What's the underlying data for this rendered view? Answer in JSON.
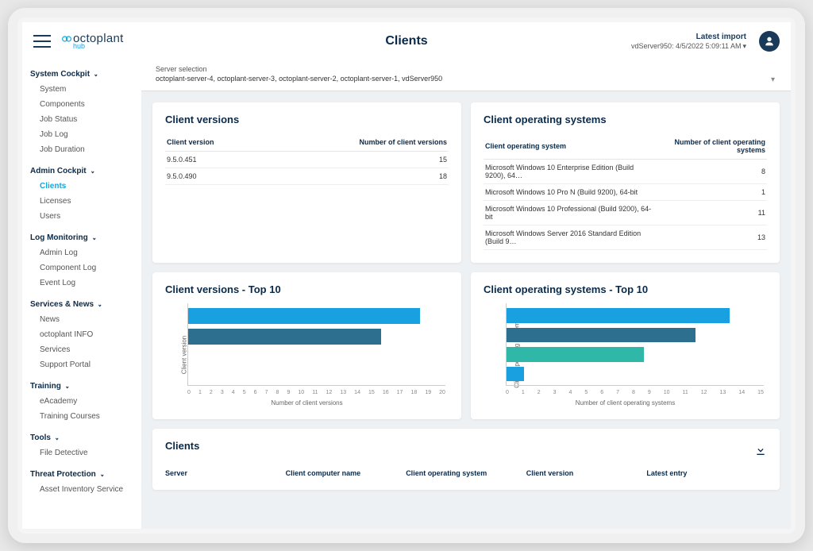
{
  "brand": {
    "name": "octoplant",
    "sub": "hub",
    "icon_color": "#0fa7e0"
  },
  "page_title": "Clients",
  "latest_import": {
    "label": "Latest import",
    "value": "vdServer950: 4/5/2022 5:09:11 AM"
  },
  "server_selection": {
    "label": "Server selection",
    "value": "octoplant-server-4, octoplant-server-3, octoplant-server-2, octoplant-server-1, vdServer950"
  },
  "sidebar": [
    {
      "head": "System Cockpit",
      "items": [
        "System",
        "Components",
        "Job Status",
        "Job Log",
        "Job Duration"
      ]
    },
    {
      "head": "Admin Cockpit",
      "items": [
        "Clients",
        "Licenses",
        "Users"
      ],
      "active": 0
    },
    {
      "head": "Log Monitoring",
      "items": [
        "Admin Log",
        "Component Log",
        "Event Log"
      ]
    },
    {
      "head": "Services & News",
      "items": [
        "News",
        "octoplant INFO",
        "Services",
        "Support Portal"
      ]
    },
    {
      "head": "Training",
      "items": [
        "eAcademy",
        "Training Courses"
      ]
    },
    {
      "head": "Tools",
      "items": [
        "File Detective"
      ]
    },
    {
      "head": "Threat Protection",
      "items": [
        "Asset Inventory Service"
      ]
    }
  ],
  "cards": {
    "versions": {
      "title": "Client versions",
      "col1": "Client version",
      "col2": "Number of client versions",
      "rows": [
        [
          "9.5.0.451",
          "15"
        ],
        [
          "9.5.0.490",
          "18"
        ]
      ]
    },
    "os": {
      "title": "Client operating systems",
      "col1": "Client operating system",
      "col2": "Number of client operating systems",
      "rows": [
        [
          "Microsoft Windows 10 Enterprise Edition (Build 9200), 64…",
          "8"
        ],
        [
          "Microsoft Windows 10 Pro N (Build 9200), 64-bit",
          "1"
        ],
        [
          "Microsoft Windows 10 Professional (Build 9200), 64-bit",
          "11"
        ],
        [
          "Microsoft Windows Server 2016 Standard Edition (Build 9…",
          "13"
        ]
      ]
    },
    "versions_chart": {
      "title": "Client versions - Top 10",
      "ylabel": "Client version",
      "xlabel": "Number of client versions",
      "xmax": 20,
      "ticks": [
        "0",
        "1",
        "2",
        "3",
        "4",
        "5",
        "6",
        "7",
        "8",
        "9",
        "10",
        "11",
        "12",
        "13",
        "14",
        "15",
        "16",
        "17",
        "18",
        "19",
        "20"
      ],
      "bars": [
        {
          "v": 18,
          "c": "#18a0e0"
        },
        {
          "v": 15,
          "c": "#2d6f8f"
        }
      ]
    },
    "os_chart": {
      "title": "Client operating systems - Top 10",
      "ylabel": "Client operating system",
      "xlabel": "Number of client operating systems",
      "xmax": 15,
      "ticks": [
        "0",
        "1",
        "2",
        "3",
        "4",
        "5",
        "6",
        "7",
        "8",
        "9",
        "10",
        "11",
        "12",
        "13",
        "14",
        "15"
      ],
      "bars": [
        {
          "v": 13,
          "c": "#18a0e0"
        },
        {
          "v": 11,
          "c": "#2d6f8f"
        },
        {
          "v": 8,
          "c": "#2fb7a8"
        },
        {
          "v": 1,
          "c": "#18a0e0"
        }
      ]
    },
    "clients_table": {
      "title": "Clients",
      "cols": [
        "Server",
        "Client computer name",
        "Client operating system",
        "Client version",
        "Latest entry"
      ]
    }
  },
  "colors": {
    "heading": "#0a2a4a",
    "accent": "#0fa7e0",
    "bg": "#eef1f3"
  }
}
